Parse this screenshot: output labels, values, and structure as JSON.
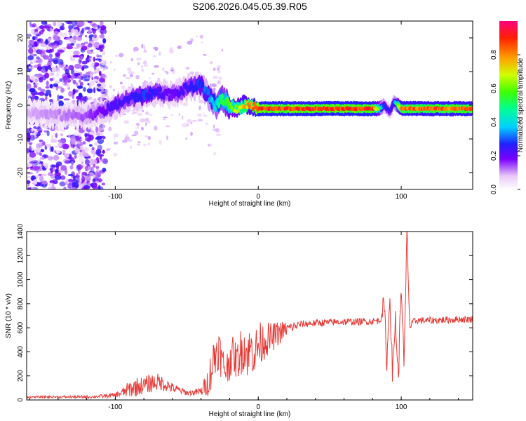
{
  "chart_data": [
    {
      "type": "heatmap",
      "title": "S206.2026.045.05.39.R05",
      "xlabel": "Height of straight line (km)",
      "ylabel": "Frequency (Hz)",
      "xlim": [
        -162,
        150
      ],
      "ylim": [
        -25,
        25
      ],
      "xticks": [
        -100,
        0,
        100
      ],
      "yticks": [
        -20,
        -10,
        0,
        10,
        20
      ],
      "xtick_labels": [
        "-100",
        "0",
        "100"
      ],
      "ytick_labels": [
        "-20",
        "-10",
        "0",
        "10",
        "20"
      ],
      "colorbar": {
        "label": "Normalized spectral amplitude",
        "range": [
          0,
          1
        ],
        "ticks": [
          0.0,
          0.2,
          0.4,
          0.6,
          0.8
        ],
        "tick_labels": [
          "0.0",
          "0.2",
          "0.4",
          "0.6",
          "0.8"
        ]
      },
      "ridge": {
        "description_points_x": [
          -162,
          -140,
          -120,
          -110,
          -100,
          -90,
          -80,
          -70,
          -60,
          -50,
          -40,
          -35,
          -30,
          -25,
          -20,
          -15,
          -10,
          -5,
          0,
          10,
          20,
          40,
          60,
          80,
          85,
          88,
          92,
          95,
          100,
          120,
          150
        ],
        "freq": [
          -2,
          -3,
          -3,
          -2,
          0,
          2,
          3,
          4,
          3,
          5,
          6,
          3,
          0,
          2,
          0,
          -1,
          0,
          0,
          -1,
          -1,
          -1,
          -1,
          -1,
          -1,
          -1,
          0,
          -2,
          1,
          -1,
          -1,
          -1
        ],
        "amplitude": [
          0.1,
          0.12,
          0.15,
          0.2,
          0.25,
          0.25,
          0.3,
          0.25,
          0.2,
          0.25,
          0.3,
          0.35,
          0.45,
          0.55,
          0.65,
          0.7,
          0.8,
          0.85,
          0.95,
          0.95,
          0.95,
          0.95,
          0.95,
          0.95,
          0.6,
          0.3,
          0.25,
          0.3,
          0.9,
          0.9,
          0.9
        ]
      }
    },
    {
      "type": "line",
      "xlabel": "Height of straight line (km)",
      "ylabel": "SNR (10 * v/v)",
      "xlim": [
        -162,
        150
      ],
      "ylim": [
        0,
        1400
      ],
      "xticks": [
        -100,
        0,
        100
      ],
      "yticks": [
        0,
        200,
        400,
        600,
        800,
        1000,
        1200,
        1400
      ],
      "xtick_labels": [
        "-100",
        "0",
        "100"
      ],
      "ytick_labels": [
        "0",
        "200",
        "400",
        "600",
        "800",
        "1000",
        "1200",
        "1400"
      ],
      "series": [
        {
          "name": "SNR",
          "color": "#e53935",
          "x": [
            -162,
            -140,
            -120,
            -110,
            -100,
            -95,
            -90,
            -85,
            -80,
            -75,
            -70,
            -65,
            -60,
            -55,
            -50,
            -45,
            -40,
            -35,
            -32,
            -28,
            -25,
            -22,
            -20,
            -18,
            -15,
            -12,
            -10,
            -8,
            -5,
            -2,
            0,
            5,
            10,
            15,
            20,
            25,
            30,
            40,
            50,
            60,
            70,
            80,
            85,
            88,
            90,
            92,
            94,
            96,
            98,
            100,
            102,
            104,
            106,
            108,
            110,
            120,
            130,
            140,
            150
          ],
          "values": [
            25,
            25,
            25,
            30,
            40,
            60,
            90,
            110,
            120,
            140,
            150,
            130,
            100,
            80,
            60,
            60,
            70,
            150,
            300,
            450,
            300,
            250,
            350,
            380,
            320,
            400,
            450,
            380,
            420,
            400,
            450,
            500,
            520,
            560,
            590,
            610,
            630,
            640,
            645,
            650,
            650,
            655,
            660,
            800,
            300,
            900,
            200,
            700,
            150,
            1000,
            250,
            1400,
            600,
            640,
            660,
            660,
            665,
            670,
            670
          ],
          "noise": [
            8,
            10,
            12,
            15,
            20,
            40,
            70,
            80,
            70,
            80,
            70,
            60,
            40,
            30,
            25,
            25,
            40,
            120,
            200,
            200,
            150,
            150,
            180,
            150,
            150,
            200,
            200,
            200,
            200,
            200,
            200,
            150,
            120,
            100,
            60,
            40,
            30,
            30,
            30,
            30,
            30,
            30,
            30,
            100,
            100,
            100,
            100,
            100,
            100,
            100,
            100,
            100,
            40,
            30,
            30,
            30,
            30,
            30,
            30
          ]
        }
      ]
    }
  ]
}
